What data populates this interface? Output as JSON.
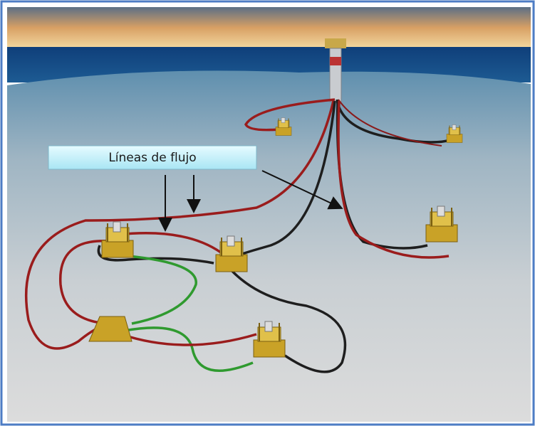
{
  "label": {
    "text": "Líneas de flujo"
  }
}
